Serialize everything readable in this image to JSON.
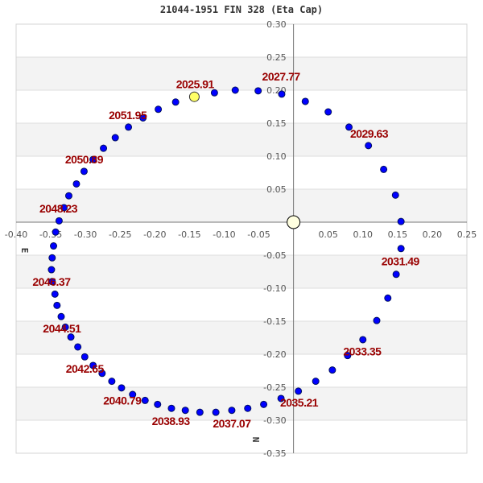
{
  "chart_data": {
    "type": "scatter",
    "title": "21044-1951 FIN 328 (Eta Cap)",
    "xlabel": "E",
    "ylabel": "N",
    "xlim": [
      -0.4,
      0.25
    ],
    "ylim": [
      -0.35,
      0.3
    ],
    "x_ticks": [
      "-0.40",
      "-0.35",
      "-0.30",
      "-0.25",
      "-0.20",
      "-0.15",
      "-0.10",
      "-0.05",
      "0.05",
      "0.10",
      "0.15",
      "0.20",
      "0.25"
    ],
    "y_ticks": [
      "0.30",
      "0.25",
      "0.20",
      "0.15",
      "0.10",
      "0.05",
      "-0.05",
      "-0.10",
      "-0.15",
      "-0.20",
      "-0.25",
      "-0.30",
      "-0.35"
    ],
    "grid": "horizontal",
    "colors": {
      "points": "#0000ff",
      "current": "#ffff66",
      "origin": "#ffffe0",
      "labels": "#990000",
      "band": "#f3f3f3"
    },
    "primary": {
      "x": 0,
      "y": 0
    },
    "current_position": {
      "x": -0.143,
      "y": 0.19
    },
    "points": [
      [
        -0.114,
        0.196
      ],
      [
        -0.084,
        0.2
      ],
      [
        -0.051,
        0.199
      ],
      [
        -0.017,
        0.194
      ],
      [
        0.017,
        0.183
      ],
      [
        0.05,
        0.167
      ],
      [
        0.08,
        0.144
      ],
      [
        0.108,
        0.116
      ],
      [
        0.13,
        0.08
      ],
      [
        0.147,
        0.041
      ],
      [
        0.155,
        0.001
      ],
      [
        0.155,
        -0.04
      ],
      [
        0.148,
        -0.079
      ],
      [
        0.136,
        -0.115
      ],
      [
        0.12,
        -0.149
      ],
      [
        0.1,
        -0.178
      ],
      [
        0.078,
        -0.202
      ],
      [
        0.056,
        -0.224
      ],
      [
        0.032,
        -0.241
      ],
      [
        0.007,
        -0.256
      ],
      [
        -0.018,
        -0.267
      ],
      [
        -0.043,
        -0.276
      ],
      [
        -0.066,
        -0.282
      ],
      [
        -0.089,
        -0.285
      ],
      [
        -0.112,
        -0.288
      ],
      [
        -0.135,
        -0.288
      ],
      [
        -0.156,
        -0.285
      ],
      [
        -0.176,
        -0.282
      ],
      [
        -0.196,
        -0.276
      ],
      [
        -0.214,
        -0.27
      ],
      [
        -0.232,
        -0.261
      ],
      [
        -0.248,
        -0.251
      ],
      [
        -0.262,
        -0.241
      ],
      [
        -0.276,
        -0.229
      ],
      [
        -0.289,
        -0.217
      ],
      [
        -0.301,
        -0.204
      ],
      [
        -0.311,
        -0.189
      ],
      [
        -0.321,
        -0.174
      ],
      [
        -0.329,
        -0.159
      ],
      [
        -0.335,
        -0.143
      ],
      [
        -0.341,
        -0.126
      ],
      [
        -0.344,
        -0.109
      ],
      [
        -0.348,
        -0.09
      ],
      [
        -0.349,
        -0.072
      ],
      [
        -0.348,
        -0.054
      ],
      [
        -0.346,
        -0.036
      ],
      [
        -0.343,
        -0.015
      ],
      [
        -0.338,
        0.002
      ],
      [
        -0.331,
        0.022
      ],
      [
        -0.324,
        0.04
      ],
      [
        -0.313,
        0.058
      ],
      [
        -0.302,
        0.077
      ],
      [
        -0.289,
        0.095
      ],
      [
        -0.274,
        0.112
      ],
      [
        -0.257,
        0.128
      ],
      [
        -0.238,
        0.144
      ],
      [
        -0.217,
        0.158
      ],
      [
        -0.195,
        0.171
      ],
      [
        -0.17,
        0.182
      ]
    ],
    "annotations": [
      {
        "text": "2025.91",
        "x": -0.142,
        "y": 0.209
      },
      {
        "text": "2027.77",
        "x": -0.018,
        "y": 0.212
      },
      {
        "text": "2029.63",
        "x": 0.109,
        "y": 0.134
      },
      {
        "text": "2031.49",
        "x": 0.154,
        "y": -0.059
      },
      {
        "text": "2033.35",
        "x": 0.099,
        "y": -0.196
      },
      {
        "text": "2035.21",
        "x": 0.008,
        "y": -0.273
      },
      {
        "text": "2037.07",
        "x": -0.089,
        "y": -0.305
      },
      {
        "text": "2038.93",
        "x": -0.177,
        "y": -0.301
      },
      {
        "text": "2040.79",
        "x": -0.247,
        "y": -0.27
      },
      {
        "text": "2042.65",
        "x": -0.301,
        "y": -0.222
      },
      {
        "text": "2044.51",
        "x": -0.334,
        "y": -0.161
      },
      {
        "text": "2046.37",
        "x": -0.349,
        "y": -0.09
      },
      {
        "text": "2048.23",
        "x": -0.339,
        "y": 0.021
      },
      {
        "text": "2050.89",
        "x": -0.302,
        "y": 0.095
      },
      {
        "text": "2051.95",
        "x": -0.239,
        "y": 0.162
      }
    ]
  }
}
